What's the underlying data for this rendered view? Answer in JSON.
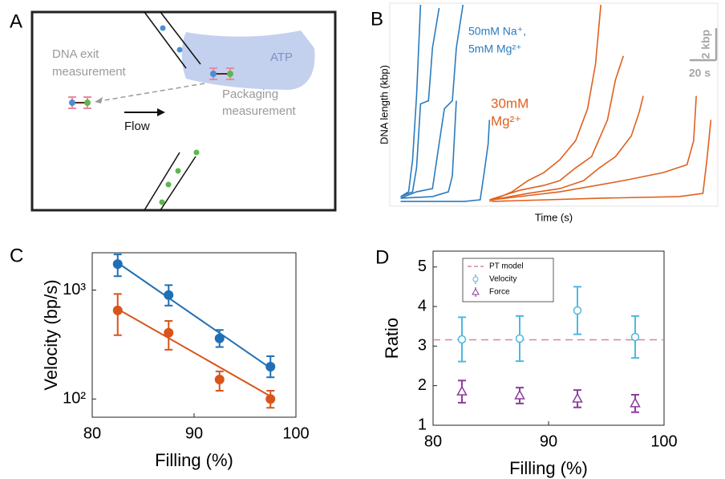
{
  "panel_a": {
    "panel_label": "A",
    "exit_label": [
      "DNA exit",
      "measurement"
    ],
    "atp_label": "ATP",
    "packaging_label": [
      "Packaging",
      "measurement"
    ],
    "flow_label": "Flow"
  },
  "chart_data": [
    {
      "type": "trace",
      "panel_label": "B",
      "xlabel": "Time (s)",
      "ylabel": "DNA length (kbp)",
      "xlim": [
        0,
        245
      ],
      "ylim": [
        0,
        12.5
      ],
      "annotations": [
        {
          "lines": [
            "50mM Na⁺,",
            "5mM Mg²⁺"
          ],
          "color": "#2a7bbf"
        },
        {
          "lines": [
            "30mM",
            "Mg²⁺"
          ],
          "color": "#e0601f"
        }
      ],
      "scale_bar": {
        "y": {
          "value": 2,
          "label": "2 kbp"
        },
        "x": {
          "value": 20,
          "label": "20 s"
        },
        "color": "#a6a6a6"
      },
      "series": [
        {
          "color": "#2a7bbf",
          "x": [
            7,
            13,
            16,
            19,
            22
          ],
          "values": [
            0.5,
            0.8,
            2.8,
            6.8,
            12.5
          ]
        },
        {
          "color": "#2a7bbf",
          "x": [
            7,
            16,
            19,
            22,
            28,
            31,
            36
          ],
          "values": [
            0.5,
            0.8,
            2.3,
            6.3,
            6.5,
            9.8,
            12.3
          ]
        },
        {
          "color": "#2a7bbf",
          "x": [
            7,
            19,
            31,
            36,
            40,
            46,
            49,
            54
          ],
          "values": [
            0.4,
            0.8,
            1,
            3.8,
            6,
            6.5,
            9.8,
            12.5
          ]
        },
        {
          "color": "#2a7bbf",
          "x": [
            7,
            31,
            43,
            46,
            49
          ],
          "values": [
            0.4,
            0.5,
            0.8,
            1.8,
            6.5
          ]
        },
        {
          "color": "#2a7bbf",
          "x": [
            7,
            55,
            67,
            70,
            73,
            74
          ],
          "values": [
            0.2,
            0.2,
            0.3,
            2,
            3.8,
            5.3
          ]
        },
        {
          "color": "#e0601f",
          "x": [
            74,
            91,
            103,
            115,
            127,
            139,
            148,
            154,
            158
          ],
          "values": [
            0.2,
            0.8,
            1.5,
            2,
            2.8,
            4,
            6,
            8.8,
            12.5
          ]
        },
        {
          "color": "#e0601f",
          "x": [
            74,
            97,
            115,
            127,
            139,
            151,
            163,
            169,
            175
          ],
          "values": [
            0.3,
            0.9,
            1.2,
            1.5,
            2.3,
            3,
            5.3,
            7.8,
            9.3
          ]
        },
        {
          "color": "#e0601f",
          "x": [
            76,
            103,
            127,
            145,
            157,
            169,
            181,
            187,
            190
          ],
          "values": [
            0.3,
            0.7,
            1,
            1.5,
            2.3,
            3,
            4.3,
            5.8,
            6.8
          ]
        },
        {
          "color": "#e0601f",
          "x": [
            76,
            127,
            175,
            205,
            223,
            228,
            230
          ],
          "values": [
            0.3,
            0.8,
            1.5,
            2,
            2.5,
            4,
            6.8
          ]
        },
        {
          "color": "#e0601f",
          "x": [
            76,
            157,
            217,
            235,
            238,
            241
          ],
          "values": [
            0.2,
            0.4,
            0.5,
            0.7,
            2.8,
            5.3
          ]
        }
      ]
    },
    {
      "type": "errorbar",
      "panel_label": "C",
      "xlabel": "Filling (%)",
      "ylabel": "Velocity (bp/s)",
      "log_y": true,
      "xlim": [
        80,
        100
      ],
      "xticks": [
        80,
        90,
        100
      ],
      "ylim": [
        68,
        2200
      ],
      "yticks": [
        {
          "value": 100,
          "label": "10²"
        },
        {
          "value": 1000,
          "label": "10³"
        }
      ],
      "x": [
        82.5,
        87.5,
        92.5,
        97.5
      ],
      "fit_x": [
        82.5,
        97.5
      ],
      "series": [
        {
          "color": "#1f6fb4",
          "marker": "dot",
          "values": [
            1730,
            900,
            360,
            198
          ],
          "lower": [
            1340,
            720,
            300,
            158
          ],
          "upper": [
            2120,
            1110,
            430,
            247
          ],
          "fit": [
            1780,
            192
          ]
        },
        {
          "color": "#d9541a",
          "marker": "dot",
          "values": [
            650,
            405,
            151,
            100
          ],
          "lower": [
            385,
            283,
            119,
            83
          ],
          "upper": [
            920,
            520,
            179,
            119
          ],
          "fit": [
            670,
            106
          ]
        }
      ]
    },
    {
      "type": "errorbar",
      "panel_label": "D",
      "xlabel": "Filling (%)",
      "ylabel": "Ratio",
      "xlim": [
        80,
        100
      ],
      "xticks": [
        80,
        90,
        100
      ],
      "ylim": [
        1,
        5.4
      ],
      "yticks": [
        1,
        2,
        3,
        4,
        5
      ],
      "x": [
        82.5,
        87.5,
        92.5,
        97.5
      ],
      "legend": "upper left",
      "reference": {
        "name": "PT model",
        "value": 3.16,
        "color": "#d9869a"
      },
      "series": [
        {
          "name": "Velocity",
          "color": "#4fb8e0",
          "marker": "circle",
          "values": [
            3.17,
            3.19,
            3.9,
            3.23
          ],
          "errors": [
            0.56,
            0.57,
            0.6,
            0.53
          ]
        },
        {
          "name": "Force",
          "color": "#8e3a9e",
          "marker": "triangle",
          "values": [
            1.85,
            1.75,
            1.67,
            1.55
          ],
          "errors": [
            0.28,
            0.2,
            0.22,
            0.22
          ]
        }
      ]
    }
  ]
}
